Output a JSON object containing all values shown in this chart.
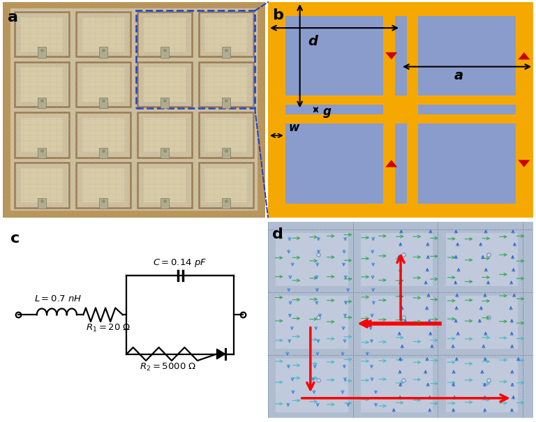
{
  "panel_labels": [
    "a",
    "b",
    "c",
    "d"
  ],
  "panel_label_fontsize": 16,
  "bg_color": "#ffffff",
  "panel_b_bg": "#8a9ccc",
  "panel_b_gold": "#f5a800",
  "panel_b_red": "#cc0000",
  "photo_bg": "#ccc0a0",
  "photo_cell_edge": "#9a7a50",
  "photo_inner": "#d8c8a8",
  "photo_connector": "#a0a080"
}
